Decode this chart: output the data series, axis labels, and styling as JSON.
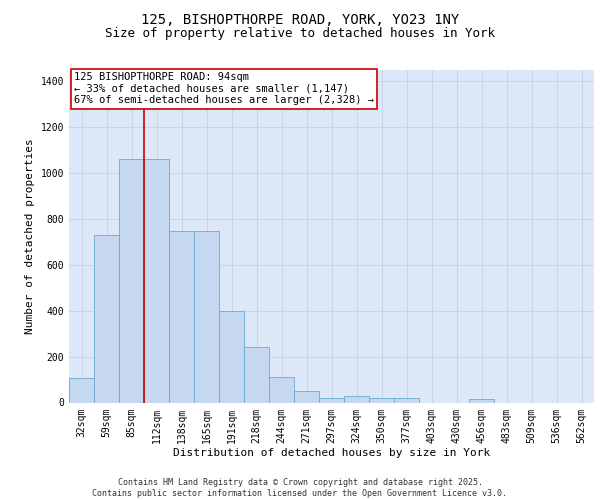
{
  "title_line1": "125, BISHOPTHORPE ROAD, YORK, YO23 1NY",
  "title_line2": "Size of property relative to detached houses in York",
  "xlabel": "Distribution of detached houses by size in York",
  "ylabel": "Number of detached properties",
  "categories": [
    "32sqm",
    "59sqm",
    "85sqm",
    "112sqm",
    "138sqm",
    "165sqm",
    "191sqm",
    "218sqm",
    "244sqm",
    "271sqm",
    "297sqm",
    "324sqm",
    "350sqm",
    "377sqm",
    "403sqm",
    "430sqm",
    "456sqm",
    "483sqm",
    "509sqm",
    "536sqm",
    "562sqm"
  ],
  "values": [
    105,
    730,
    1060,
    1060,
    750,
    750,
    400,
    240,
    110,
    50,
    20,
    27,
    20,
    18,
    0,
    0,
    14,
    0,
    0,
    0,
    0
  ],
  "bar_color": "#c5d8f0",
  "bar_edge_color": "#6aaad4",
  "grid_color": "#c8d4e8",
  "background_color": "#dce8f8",
  "vline_color": "#cc0000",
  "vline_x_index": 2.5,
  "annotation_text": "125 BISHOPTHORPE ROAD: 94sqm\n← 33% of detached houses are smaller (1,147)\n67% of semi-detached houses are larger (2,328) →",
  "ylim": [
    0,
    1450
  ],
  "yticks": [
    0,
    200,
    400,
    600,
    800,
    1000,
    1200,
    1400
  ],
  "footer_text": "Contains HM Land Registry data © Crown copyright and database right 2025.\nContains public sector information licensed under the Open Government Licence v3.0.",
  "title_fontsize": 10,
  "subtitle_fontsize": 9,
  "axis_label_fontsize": 8,
  "tick_fontsize": 7,
  "annotation_fontsize": 7.5,
  "footer_fontsize": 6
}
